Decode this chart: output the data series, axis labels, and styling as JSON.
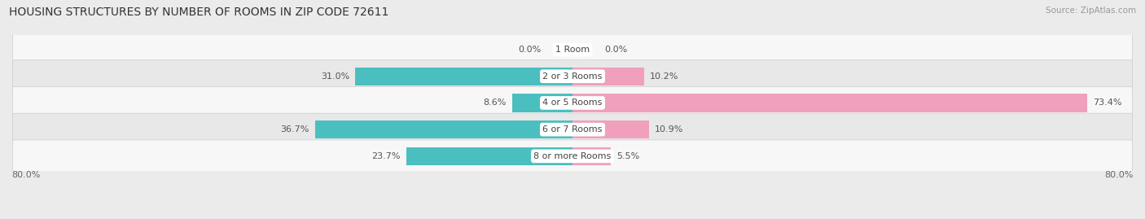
{
  "title": "HOUSING STRUCTURES BY NUMBER OF ROOMS IN ZIP CODE 72611",
  "source": "Source: ZipAtlas.com",
  "categories": [
    "1 Room",
    "2 or 3 Rooms",
    "4 or 5 Rooms",
    "6 or 7 Rooms",
    "8 or more Rooms"
  ],
  "owner_values": [
    0.0,
    31.0,
    8.6,
    36.7,
    23.7
  ],
  "renter_values": [
    0.0,
    10.2,
    73.4,
    10.9,
    5.5
  ],
  "owner_color": "#4bbfbf",
  "renter_color": "#f0a0bc",
  "xlim": 80.0,
  "bar_height": 0.68,
  "background_color": "#ebebeb",
  "row_bg_light": "#f7f7f7",
  "row_bg_dark": "#e8e8e8",
  "title_fontsize": 10,
  "label_fontsize": 8,
  "category_fontsize": 8,
  "axis_label_fontsize": 8,
  "source_fontsize": 7.5
}
